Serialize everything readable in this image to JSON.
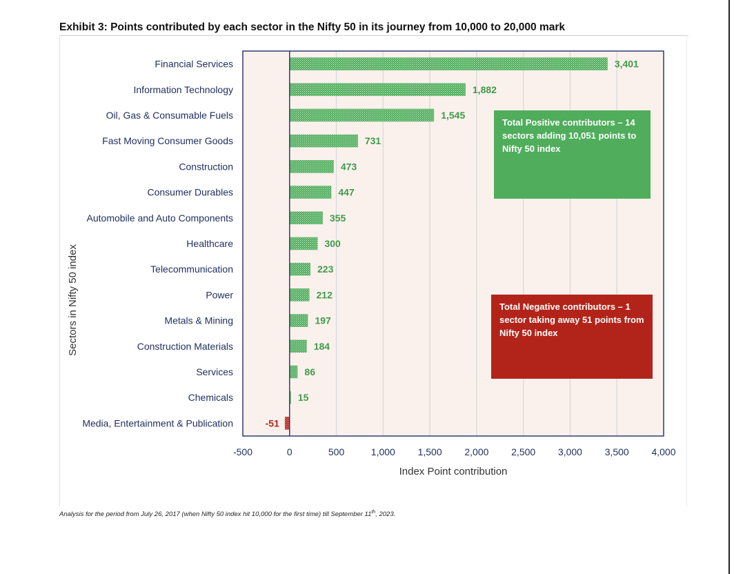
{
  "header": {
    "title": "Exhibit 3: Points contributed by each sector in the Nifty 50 in its journey from 10,000 to 20,000 mark"
  },
  "footnote": {
    "text": "Analysis for the period from July 26, 2017 (when Nifty 50 index hit 10,000 for the first time) till September 11",
    "sup": "th",
    "tail": ", 2023."
  },
  "annotations": {
    "positive": "Total Positive contributors – 14 sectors adding 10,051 points to Nifty 50 index",
    "negative": "Total Negative contributors – 1 sector taking away 51 points from Nifty 50 index"
  },
  "colors": {
    "positive_bar": "#4fad5b",
    "negative_bar": "#b2241a",
    "plot_bg": "#fbf1ec",
    "axis_frame": "#2b3a78",
    "label_positive": "#3f9a4b",
    "label_negative": "#b2241a"
  },
  "chart_data": {
    "type": "bar",
    "orientation": "horizontal",
    "title": "Exhibit 3: Points contributed by each sector in the Nifty 50 in its journey from 10,000 to 20,000 mark",
    "xlabel": "Index Point contribution",
    "ylabel": "Sectors in Nifty 50 index",
    "xlim": [
      -500,
      4000
    ],
    "xticks": [
      -500,
      0,
      500,
      1000,
      1500,
      2000,
      2500,
      3000,
      3500,
      4000
    ],
    "xtick_labels": [
      "-500",
      "0",
      "500",
      "1,000",
      "1,500",
      "2,000",
      "2,500",
      "3,000",
      "3,500",
      "4,000"
    ],
    "grid": true,
    "categories": [
      "Financial Services",
      "Information Technology",
      "Oil, Gas & Consumable Fuels",
      "Fast Moving Consumer Goods",
      "Construction",
      "Consumer Durables",
      "Automobile and Auto Components",
      "Healthcare",
      "Telecommunication",
      "Power",
      "Metals & Mining",
      "Construction Materials",
      "Services",
      "Chemicals",
      "Media, Entertainment & Publication"
    ],
    "values": [
      3401,
      1882,
      1545,
      731,
      473,
      447,
      355,
      300,
      223,
      212,
      197,
      184,
      86,
      15,
      -51
    ],
    "value_labels": [
      "3,401",
      "1,882",
      "1,545",
      "731",
      "473",
      "447",
      "355",
      "300",
      "223",
      "212",
      "197",
      "184",
      "86",
      "15",
      "-51"
    ]
  }
}
